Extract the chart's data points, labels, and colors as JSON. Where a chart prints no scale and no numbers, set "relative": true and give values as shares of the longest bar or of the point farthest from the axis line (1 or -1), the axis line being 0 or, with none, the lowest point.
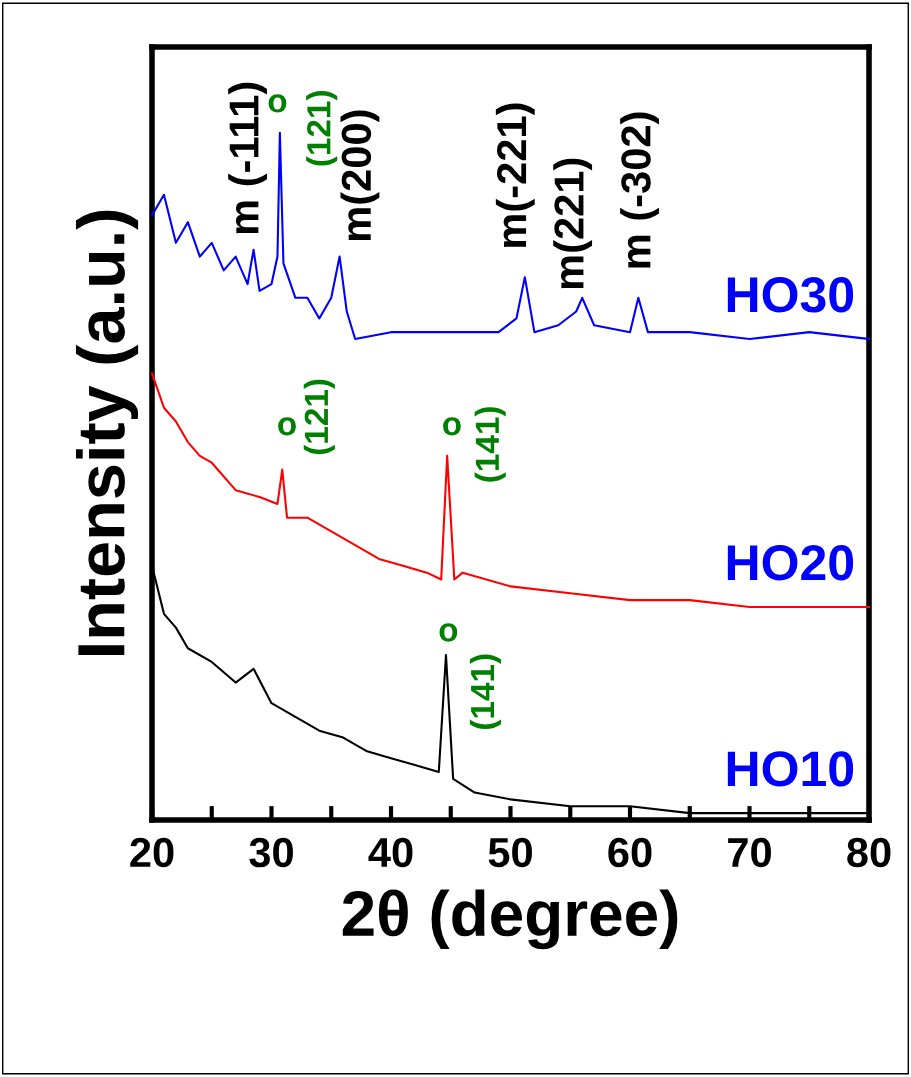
{
  "chart_data": {
    "type": "line",
    "relative": true,
    "xlabel": "2θ (degree)",
    "ylabel": "Intensity (a.u.)",
    "xlim": [
      20,
      80
    ],
    "xticks": [
      20,
      {
        "value": 25,
        "label": null
      },
      30,
      {
        "value": 35,
        "label": null
      },
      40,
      {
        "value": 45,
        "label": null
      },
      50,
      {
        "value": 55,
        "label": null
      },
      60,
      {
        "value": 65,
        "label": null
      },
      70,
      {
        "value": 75,
        "label": null
      },
      80
    ],
    "tick_labels": "x",
    "grid": false,
    "legend": false,
    "marker": "none",
    "line_style": "solid",
    "series": [
      {
        "name": "HO10",
        "color": "#000000",
        "x": [
          20,
          21,
          22,
          23,
          25,
          27,
          28.5,
          30,
          32,
          34,
          36,
          38,
          40,
          42,
          44,
          44.6,
          45.2,
          47,
          50,
          55,
          60,
          65,
          70,
          75,
          80
        ],
        "values": [
          0.37,
          0.3,
          0.28,
          0.25,
          0.23,
          0.2,
          0.22,
          0.17,
          0.15,
          0.13,
          0.12,
          0.1,
          0.09,
          0.08,
          0.07,
          0.24,
          0.06,
          0.04,
          0.03,
          0.02,
          0.02,
          0.01,
          0.01,
          0.01,
          0.01
        ]
      },
      {
        "name": "HO20",
        "color": "#ff0000",
        "x": [
          20,
          21,
          22,
          23,
          24,
          25,
          27,
          29,
          30.5,
          30.9,
          31.3,
          33,
          35,
          37,
          39,
          41,
          43,
          44.2,
          44.7,
          45.3,
          46,
          50,
          55,
          60,
          65,
          70,
          75,
          80
        ],
        "values": [
          0.65,
          0.6,
          0.58,
          0.55,
          0.53,
          0.52,
          0.48,
          0.47,
          0.46,
          0.51,
          0.44,
          0.44,
          0.42,
          0.4,
          0.38,
          0.37,
          0.36,
          0.35,
          0.53,
          0.35,
          0.36,
          0.34,
          0.33,
          0.32,
          0.32,
          0.31,
          0.31,
          0.31
        ]
      },
      {
        "name": "HO30",
        "color": "#0000ff",
        "x": [
          20,
          21,
          22,
          23,
          24,
          25,
          26,
          27,
          28,
          28.5,
          29,
          30,
          30.5,
          30.7,
          31,
          32,
          33,
          34,
          35,
          35.7,
          36.3,
          37,
          40,
          45,
          49,
          50.5,
          51.2,
          52,
          54,
          55.5,
          56,
          57,
          60,
          60.7,
          61.5,
          65,
          70,
          75,
          80
        ],
        "values": [
          0.88,
          0.91,
          0.84,
          0.87,
          0.82,
          0.84,
          0.8,
          0.82,
          0.78,
          0.83,
          0.77,
          0.78,
          0.82,
          1,
          0.81,
          0.76,
          0.76,
          0.73,
          0.76,
          0.82,
          0.74,
          0.7,
          0.71,
          0.71,
          0.71,
          0.73,
          0.79,
          0.71,
          0.72,
          0.74,
          0.76,
          0.72,
          0.71,
          0.76,
          0.71,
          0.71,
          0.7,
          0.71,
          0.7
        ]
      }
    ],
    "annotations": [
      "m (-111)",
      "o",
      "(121)",
      "m(200)",
      "m(-221)",
      "m(221)",
      "m (-302)",
      "o",
      "(121)",
      "o",
      "(141)",
      "o",
      "(141)"
    ]
  }
}
